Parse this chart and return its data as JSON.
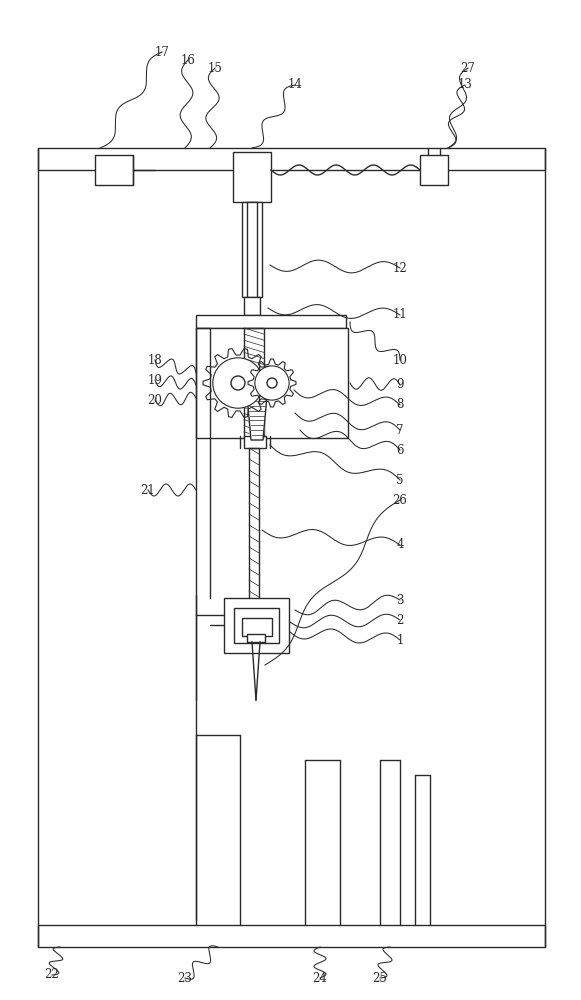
{
  "bg_color": "#ffffff",
  "lc": "#2a2a2a",
  "lw": 1.0,
  "fig_w": 5.81,
  "fig_h": 10.0,
  "dpi": 100
}
